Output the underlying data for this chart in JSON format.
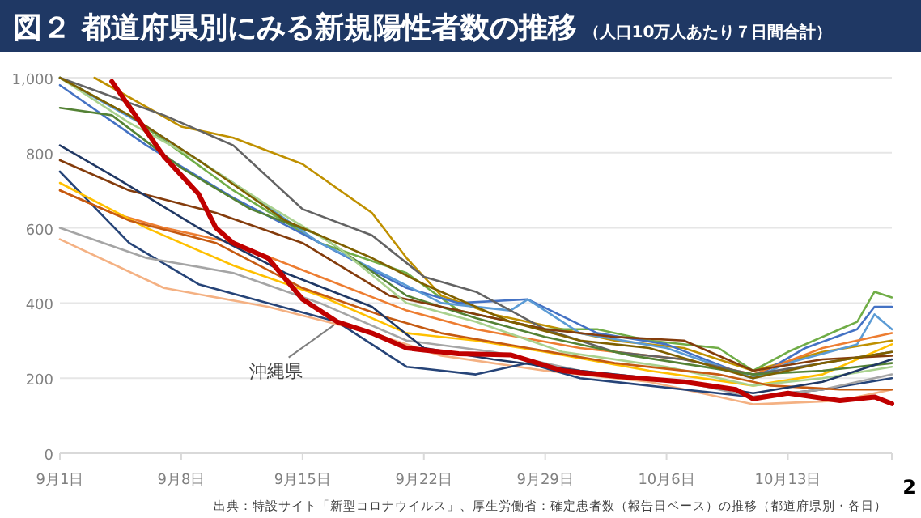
{
  "chart_data": {
    "type": "line",
    "title": "図２ 都道府県別にみる新規陽性者数の推移",
    "subtitle": "（人口10万人あたり７日間合計）",
    "xlim": [
      "--09-01",
      "--10-19"
    ],
    "xticks": [
      {
        "value": "--09-01",
        "label": "9月1日"
      },
      {
        "value": "--09-08",
        "label": "9月8日"
      },
      {
        "value": "--09-15",
        "label": "9月15日"
      },
      {
        "value": "--09-22",
        "label": "9月22日"
      },
      {
        "value": "--09-29",
        "label": "9月29日"
      },
      {
        "value": "--10-06",
        "label": "10月6日"
      },
      {
        "value": "--10-13",
        "label": "10月13日"
      }
    ],
    "ylim": [
      0,
      1000
    ],
    "yticks": [
      0,
      200,
      400,
      600,
      800,
      {
        "value": 1000,
        "label": "1,000"
      }
    ],
    "grid": "y",
    "legend": false,
    "marker": "none",
    "line_style": "solid",
    "annotations": [
      "出典：特設サイト「新型コロナウイルス」、厚生労働省：確定患者数（報告日ベース）の推移（都道府県別・各日）",
      "2"
    ],
    "series": [
      {
        "color": "#bf9000",
        "x": [
          "--09-03",
          "--09-08",
          "--09-11",
          "--09-15",
          "--09-19",
          "--09-21",
          "--09-23",
          "--09-26",
          "--09-29",
          "--10-03",
          "--10-07",
          "--10-11",
          "--10-15",
          "--10-19"
        ],
        "values": [
          1000,
          870,
          840,
          770,
          640,
          520,
          420,
          370,
          340,
          300,
          280,
          220,
          270,
          300
        ]
      },
      {
        "color": "#70ad47",
        "x": [
          "--09-01",
          "--09-05",
          "--09-11",
          "--09-16",
          "--09-21",
          "--09-24",
          "--09-29",
          "--10-02",
          "--10-05",
          "--10-09",
          "--10-11",
          "--10-13",
          "--10-16",
          "--10-17",
          "--10-18",
          "--10-19"
        ],
        "values": [
          1000,
          900,
          700,
          560,
          480,
          380,
          330,
          330,
          300,
          280,
          220,
          270,
          330,
          350,
          430,
          415
        ]
      },
      {
        "color": "#4472c4",
        "x": [
          "--09-01",
          "--09-06",
          "--09-11",
          "--09-16",
          "--09-21",
          "--09-24",
          "--09-28",
          "--10-02",
          "--10-06",
          "--10-11",
          "--10-14",
          "--10-17",
          "--10-18",
          "--10-19"
        ],
        "values": [
          980,
          820,
          680,
          560,
          440,
          400,
          410,
          320,
          290,
          200,
          280,
          330,
          390,
          390
        ]
      },
      {
        "color": "#5b9bd5",
        "x": [
          "--09-01",
          "--09-06",
          "--09-11",
          "--09-16",
          "--09-20",
          "--09-23",
          "--09-27",
          "--09-28",
          "--10-01",
          "--10-06",
          "--10-11",
          "--10-13",
          "--10-17",
          "--10-18",
          "--10-19"
        ],
        "values": [
          1000,
          870,
          720,
          560,
          470,
          400,
          380,
          410,
          320,
          280,
          200,
          240,
          290,
          370,
          330
        ]
      },
      {
        "color": "#ed7d31",
        "x": [
          "--09-01",
          "--09-04",
          "--09-07",
          "--09-11",
          "--09-16",
          "--09-21",
          "--09-25",
          "--10-01",
          "--10-07",
          "--10-11",
          "--10-15",
          "--10-19"
        ],
        "values": [
          700,
          640,
          600,
          560,
          470,
          380,
          330,
          280,
          250,
          210,
          280,
          320
        ]
      },
      {
        "color": "#f4b183",
        "x": [
          "--09-01",
          "--09-07",
          "--09-13",
          "--09-19",
          "--09-23",
          "--09-29",
          "--10-05",
          "--10-11",
          "--10-16",
          "--10-19"
        ],
        "values": [
          570,
          440,
          390,
          320,
          260,
          220,
          190,
          130,
          140,
          170
        ]
      },
      {
        "color": "#264478",
        "x": [
          "--09-01",
          "--09-05",
          "--09-09",
          "--09-13",
          "--09-17",
          "--09-21",
          "--09-25",
          "--09-28",
          "--10-01",
          "--10-07",
          "--10-11",
          "--10-15",
          "--10-19"
        ],
        "values": [
          750,
          560,
          450,
          400,
          350,
          230,
          210,
          240,
          200,
          170,
          150,
          170,
          200
        ]
      },
      {
        "color": "#a5a5a5",
        "x": [
          "--09-01",
          "--09-06",
          "--09-11",
          "--09-16",
          "--09-21",
          "--09-26",
          "--10-01",
          "--10-07",
          "--10-11",
          "--10-15",
          "--10-19"
        ],
        "values": [
          600,
          520,
          480,
          400,
          300,
          270,
          220,
          190,
          150,
          170,
          210
        ]
      },
      {
        "color": "#636363",
        "x": [
          "--09-01",
          "--09-04",
          "--09-07",
          "--09-11",
          "--09-15",
          "--09-19",
          "--09-22",
          "--09-25",
          "--09-29",
          "--10-03",
          "--10-07",
          "--10-11",
          "--10-15",
          "--10-19"
        ],
        "values": [
          1000,
          950,
          900,
          820,
          650,
          580,
          470,
          430,
          330,
          270,
          250,
          210,
          240,
          270
        ]
      },
      {
        "color": "#ffc000",
        "x": [
          "--09-01",
          "--09-06",
          "--09-11",
          "--09-16",
          "--09-21",
          "--09-25",
          "--09-29",
          "--10-05",
          "--10-11",
          "--10-15",
          "--10-19"
        ],
        "values": [
          720,
          600,
          500,
          420,
          320,
          300,
          270,
          220,
          180,
          210,
          290
        ]
      },
      {
        "color": "#548235",
        "x": [
          "--09-01",
          "--09-04",
          "--09-08",
          "--09-12",
          "--09-16",
          "--09-21",
          "--09-25",
          "--09-29",
          "--10-04",
          "--10-11",
          "--10-15",
          "--10-19"
        ],
        "values": [
          920,
          900,
          760,
          650,
          580,
          420,
          360,
          310,
          260,
          210,
          220,
          240
        ]
      },
      {
        "color": "#843c0c",
        "x": [
          "--09-01",
          "--09-05",
          "--09-10",
          "--09-15",
          "--09-20",
          "--09-24",
          "--09-29",
          "--10-03",
          "--10-07",
          "--10-11",
          "--10-15",
          "--10-19"
        ],
        "values": [
          780,
          700,
          640,
          560,
          420,
          380,
          330,
          310,
          300,
          220,
          250,
          260
        ]
      },
      {
        "color": "#a9d18e",
        "x": [
          "--09-01",
          "--09-05",
          "--09-09",
          "--09-13",
          "--09-17",
          "--09-21",
          "--09-25",
          "--09-30",
          "--10-06",
          "--10-11",
          "--10-15",
          "--10-19"
        ],
        "values": [
          1000,
          880,
          780,
          660,
          550,
          400,
          350,
          270,
          230,
          180,
          200,
          230
        ]
      },
      {
        "color": "#c55a11",
        "x": [
          "--09-01",
          "--09-05",
          "--09-10",
          "--09-15",
          "--09-20",
          "--09-23",
          "--09-28",
          "--10-03",
          "--10-09",
          "--10-12",
          "--10-16",
          "--10-19"
        ],
        "values": [
          700,
          620,
          560,
          440,
          360,
          320,
          280,
          240,
          210,
          180,
          170,
          170
        ]
      },
      {
        "color": "#203864",
        "x": [
          "--09-01",
          "--09-04",
          "--09-09",
          "--09-14",
          "--09-19",
          "--09-22",
          "--09-26",
          "--10-01",
          "--10-07",
          "--10-11",
          "--10-15",
          "--10-19"
        ],
        "values": [
          820,
          740,
          600,
          480,
          390,
          280,
          250,
          220,
          190,
          160,
          190,
          250
        ]
      },
      {
        "color": "#7f6000",
        "x": [
          "--09-01",
          "--09-05",
          "--09-09",
          "--09-14",
          "--09-19",
          "--09-22",
          "--09-27",
          "--10-01",
          "--10-05",
          "--10-11",
          "--10-15",
          "--10-19"
        ],
        "values": [
          1000,
          900,
          780,
          620,
          520,
          450,
          350,
          300,
          280,
          200,
          240,
          270
        ]
      },
      {
        "name": "沖縄県",
        "color": "#c00000",
        "x": [
          "--09-04",
          "--09-07",
          "--09-09",
          "--09-10",
          "--09-11",
          "--09-13",
          "--09-15",
          "--09-17",
          "--09-19",
          "--09-21",
          "--09-22",
          "--09-24",
          "--09-27",
          "--09-30",
          "--10-03",
          "--10-07",
          "--10-10",
          "--10-11",
          "--10-13",
          "--10-16",
          "--10-18",
          "--10-19"
        ],
        "values": [
          990,
          790,
          690,
          600,
          560,
          520,
          410,
          350,
          320,
          280,
          275,
          265,
          262,
          220,
          205,
          190,
          170,
          145,
          160,
          140,
          150,
          132
        ]
      }
    ]
  }
}
